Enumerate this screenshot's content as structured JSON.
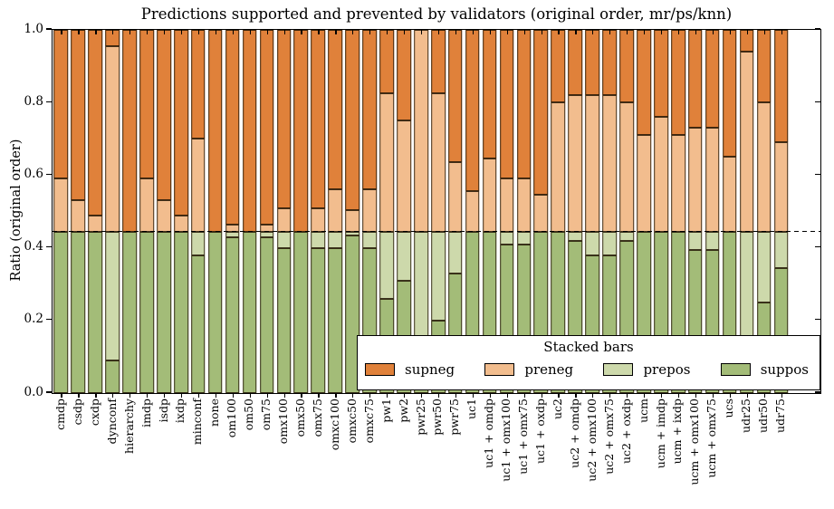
{
  "title": "Predictions supported and prevented by validators (original order, mr/ps/knn)",
  "y_axis": {
    "label": "Ratio (original order)",
    "ticks": [
      "0.0",
      "0.2",
      "0.4",
      "0.6",
      "0.8",
      "1.0"
    ],
    "range": [
      0.0,
      1.0
    ]
  },
  "legend": {
    "title": "Stacked bars",
    "entries": [
      {
        "label": "supneg",
        "color": "#e0813a"
      },
      {
        "label": "preneg",
        "color": "#f2bd8e"
      },
      {
        "label": "prepos",
        "color": "#cdd9ab"
      },
      {
        "label": "suppos",
        "color": "#a3bc78"
      }
    ]
  },
  "colors": {
    "supneg": "#e0813a",
    "preneg": "#f2bd8e",
    "prepos": "#cdd9ab",
    "suppos": "#a3bc78",
    "bar_edge": "#231605",
    "dashed_baseline": "#000000"
  },
  "chart_data": {
    "type": "bar",
    "stacked": true,
    "title": "Predictions supported and prevented by validators (original order, mr/ps/knn)",
    "xlabel": "",
    "ylabel": "Ratio (original order)",
    "ylim": [
      0.0,
      1.0
    ],
    "grid": false,
    "legend_position": "lower right inside",
    "dashed_baseline": 0.445,
    "stack_order_bottom_to_top": [
      "suppos",
      "prepos",
      "preneg",
      "supneg"
    ],
    "categories": [
      "cmdp",
      "csdp",
      "cxdp",
      "dynconf",
      "hierarchy",
      "imdp",
      "isdp",
      "ixdp",
      "minconf",
      "none",
      "om100",
      "om50",
      "om75",
      "omx100",
      "omx50",
      "omx75",
      "omxc100",
      "omxc50",
      "omxc75",
      "pw1",
      "pw2",
      "pwr25",
      "pwr50",
      "pwr75",
      "uc1",
      "uc1 + omdp",
      "uc1 + omx100",
      "uc1 + omx75",
      "uc1 + oxdp",
      "uc2",
      "uc2 + omdp",
      "uc2 + omx100",
      "uc2 + omx75",
      "uc2 + oxdp",
      "ucm",
      "ucm + imdp",
      "ucm + ixdp",
      "ucm + omx100",
      "ucm + omx75",
      "ucs",
      "udr25",
      "udr50",
      "udr75"
    ],
    "series": [
      {
        "name": "suppos",
        "values": [
          0.445,
          0.445,
          0.445,
          0.09,
          0.445,
          0.445,
          0.445,
          0.445,
          0.38,
          0.445,
          0.43,
          0.445,
          0.43,
          0.4,
          0.445,
          0.4,
          0.4,
          0.435,
          0.4,
          0.26,
          0.31,
          0.1,
          0.2,
          0.33,
          0.445,
          0.445,
          0.41,
          0.41,
          0.445,
          0.445,
          0.42,
          0.38,
          0.38,
          0.42,
          0.445,
          0.445,
          0.445,
          0.395,
          0.395,
          0.445,
          0.12,
          0.25,
          0.345
        ]
      },
      {
        "name": "prepos",
        "values": [
          0,
          0,
          0,
          0.355,
          0,
          0,
          0,
          0,
          0.065,
          0,
          0.015,
          0,
          0.015,
          0.045,
          0,
          0.045,
          0.045,
          0.01,
          0.045,
          0.185,
          0.135,
          0.345,
          0.245,
          0.115,
          0,
          0,
          0.035,
          0.035,
          0,
          0,
          0.025,
          0.065,
          0.065,
          0.025,
          0,
          0,
          0,
          0.05,
          0.05,
          0,
          0.325,
          0.195,
          0.1
        ]
      },
      {
        "name": "preneg",
        "values": [
          0.145,
          0.085,
          0.045,
          0.51,
          0,
          0.145,
          0.085,
          0.045,
          0.255,
          0,
          0.02,
          0,
          0.02,
          0.065,
          0,
          0.065,
          0.115,
          0.06,
          0.115,
          0.38,
          0.305,
          0.555,
          0.38,
          0.19,
          0.11,
          0.2,
          0.145,
          0.145,
          0.1,
          0.355,
          0.375,
          0.375,
          0.375,
          0.355,
          0.265,
          0.315,
          0.265,
          0.285,
          0.285,
          0.205,
          0.495,
          0.355,
          0.245
        ]
      },
      {
        "name": "supneg",
        "values": [
          0.41,
          0.47,
          0.51,
          0.045,
          0.555,
          0.41,
          0.47,
          0.51,
          0.3,
          0.555,
          0.535,
          0.555,
          0.535,
          0.49,
          0.555,
          0.49,
          0.44,
          0.495,
          0.44,
          0.175,
          0.25,
          0,
          0.175,
          0.365,
          0.445,
          0.355,
          0.41,
          0.41,
          0.455,
          0.2,
          0.18,
          0.18,
          0.18,
          0.2,
          0.29,
          0.24,
          0.29,
          0.27,
          0.27,
          0.35,
          0.06,
          0.2,
          0.31
        ]
      }
    ]
  }
}
